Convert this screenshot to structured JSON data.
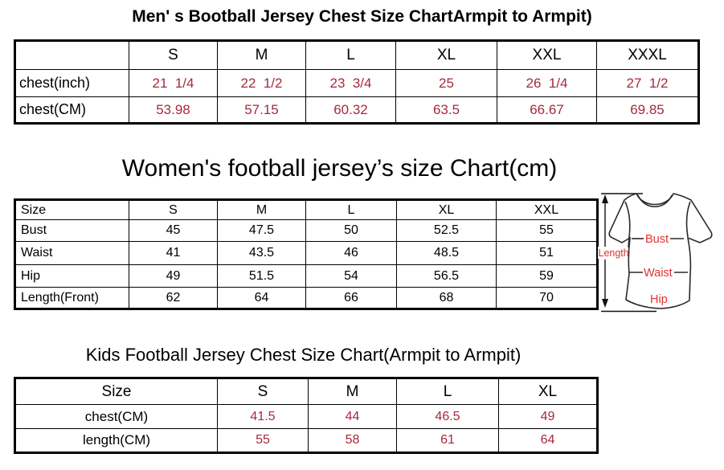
{
  "page": {
    "background": "#ffffff"
  },
  "colors": {
    "table_value_red": "#A62A3C",
    "diagram_label_red": "#E33131",
    "text_black": "#000000",
    "border_black": "#000000"
  },
  "sections": [
    {
      "title": "Men' s Bootball Jersey Chest Size ChartArmpit to Armpit)",
      "table": {
        "columns": [
          "",
          "S",
          "M",
          "L",
          "XL",
          "XXL",
          "XXXL"
        ],
        "rows": [
          {
            "label": "chest(inch)",
            "values": [
              "21  1/4",
              "22  1/2",
              "23  3/4",
              "25",
              "26  1/4",
              "27  1/2"
            ]
          },
          {
            "label": "chest(CM)",
            "values": [
              "53.98",
              "57.15",
              "60.32",
              "63.5",
              "66.67",
              "69.85"
            ]
          }
        ],
        "values_red": true
      }
    },
    {
      "title": "Women's football jersey’s size Chart(cm)",
      "table": {
        "columns": [
          "Size",
          "S",
          "M",
          "L",
          "XL",
          "XXL"
        ],
        "rows": [
          {
            "label": "Bust",
            "values": [
              "45",
              "47.5",
              "50",
              "52.5",
              "55"
            ]
          },
          {
            "label": "Waist",
            "values": [
              "41",
              "43.5",
              "46",
              "48.5",
              "51"
            ]
          },
          {
            "label": "Hip",
            "values": [
              "49",
              "51.5",
              "54",
              "56.5",
              "59"
            ]
          },
          {
            "label": "Length(Front)",
            "values": [
              "62",
              "64",
              "66",
              "68",
              "70"
            ]
          }
        ],
        "values_red": false
      }
    },
    {
      "title": "Kids Football Jersey Chest Size Chart(Armpit to Armpit)",
      "table": {
        "columns": [
          "Size",
          "S",
          "M",
          "L",
          "XL"
        ],
        "rows": [
          {
            "label": "chest(CM)",
            "values": [
              "41.5",
              "44",
              "46.5",
              "49"
            ]
          },
          {
            "label": "length(CM)",
            "values": [
              "55",
              "58",
              "61",
              "64"
            ]
          }
        ],
        "values_red": true
      }
    }
  ],
  "diagram": {
    "labels": {
      "length": "Length",
      "bust": "Bust",
      "waist": "Waist",
      "hip": "Hip"
    }
  }
}
